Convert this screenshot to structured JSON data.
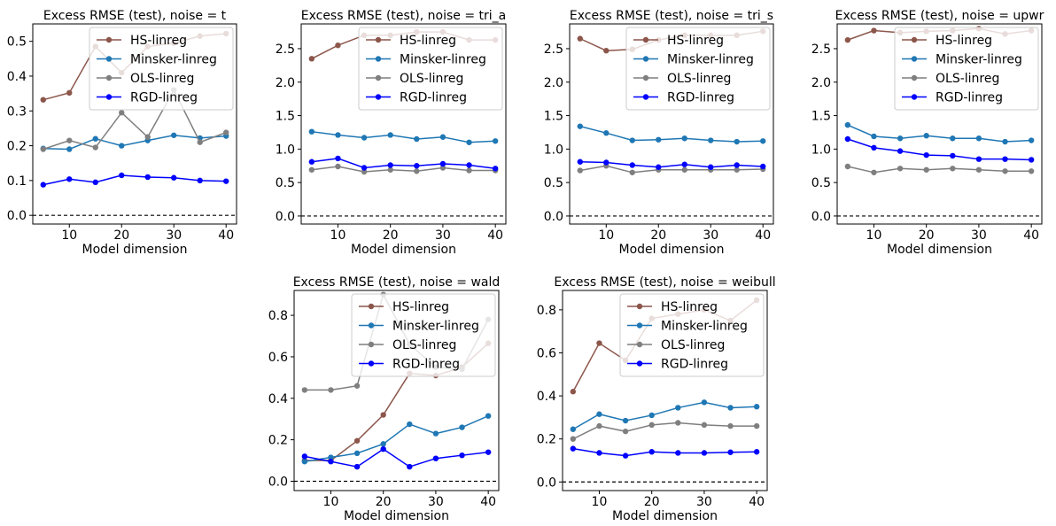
{
  "colors": {
    "HS-linreg": "#8c564b",
    "Minsker-linreg": "#1f77b4",
    "OLS-linreg": "#7f7f7f",
    "RGD-linreg": "#0000ff"
  },
  "chart_data": [
    {
      "type": "line",
      "title": "Excess RMSE (test), noise = t",
      "xlabel": "Model dimension",
      "ylabel": "",
      "x": [
        5,
        10,
        15,
        20,
        25,
        30,
        35,
        40
      ],
      "xlim": [
        3,
        42
      ],
      "ylim": [
        -0.025,
        0.55
      ],
      "xticks": [
        10,
        20,
        30,
        40
      ],
      "yticks": [
        0.0,
        0.1,
        0.2,
        0.3,
        0.4,
        0.5
      ],
      "ytick_labels": [
        "0.0",
        "0.1",
        "0.2",
        "0.3",
        "0.4",
        "0.5"
      ],
      "baseline": 0,
      "legend": "top-right",
      "series": [
        {
          "name": "HS-linreg",
          "values": [
            0.332,
            0.352,
            0.485,
            0.41,
            0.485,
            0.495,
            0.515,
            0.522
          ]
        },
        {
          "name": "Minsker-linreg",
          "values": [
            0.192,
            0.19,
            0.22,
            0.2,
            0.215,
            0.23,
            0.222,
            0.228
          ]
        },
        {
          "name": "OLS-linreg",
          "values": [
            0.19,
            0.215,
            0.195,
            0.295,
            0.225,
            0.36,
            0.21,
            0.238
          ]
        },
        {
          "name": "RGD-linreg",
          "values": [
            0.088,
            0.104,
            0.095,
            0.115,
            0.11,
            0.108,
            0.1,
            0.098
          ]
        }
      ]
    },
    {
      "type": "line",
      "title": "Excess RMSE (test), noise = tri_a",
      "xlabel": "Model dimension",
      "ylabel": "",
      "x": [
        5,
        10,
        15,
        20,
        25,
        30,
        35,
        40
      ],
      "xlim": [
        3,
        42
      ],
      "ylim": [
        -0.12,
        2.87
      ],
      "xticks": [
        10,
        20,
        30,
        40
      ],
      "yticks": [
        0.0,
        0.5,
        1.0,
        1.5,
        2.0,
        2.5
      ],
      "ytick_labels": [
        "0.0",
        "0.5",
        "1.0",
        "1.5",
        "2.0",
        "2.5"
      ],
      "baseline": 0,
      "legend": "top-right",
      "series": [
        {
          "name": "HS-linreg",
          "values": [
            2.35,
            2.55,
            2.7,
            2.7,
            2.75,
            2.75,
            2.63,
            2.63
          ]
        },
        {
          "name": "Minsker-linreg",
          "values": [
            1.26,
            1.21,
            1.17,
            1.21,
            1.15,
            1.18,
            1.1,
            1.12
          ]
        },
        {
          "name": "OLS-linreg",
          "values": [
            0.69,
            0.74,
            0.66,
            0.69,
            0.67,
            0.72,
            0.68,
            0.68
          ]
        },
        {
          "name": "RGD-linreg",
          "values": [
            0.81,
            0.86,
            0.72,
            0.76,
            0.75,
            0.78,
            0.76,
            0.71
          ]
        }
      ]
    },
    {
      "type": "line",
      "title": "Excess RMSE (test), noise = tri_s",
      "xlabel": "Model dimension",
      "ylabel": "",
      "x": [
        5,
        10,
        15,
        20,
        25,
        30,
        35,
        40
      ],
      "xlim": [
        3,
        42
      ],
      "ylim": [
        -0.12,
        2.87
      ],
      "xticks": [
        10,
        20,
        30,
        40
      ],
      "yticks": [
        0.0,
        0.5,
        1.0,
        1.5,
        2.0,
        2.5
      ],
      "ytick_labels": [
        "0.0",
        "0.5",
        "1.0",
        "1.5",
        "2.0",
        "2.5"
      ],
      "baseline": 0,
      "legend": "top-right",
      "series": [
        {
          "name": "HS-linreg",
          "values": [
            2.65,
            2.47,
            2.49,
            2.63,
            2.7,
            2.7,
            2.7,
            2.76
          ]
        },
        {
          "name": "Minsker-linreg",
          "values": [
            1.34,
            1.24,
            1.13,
            1.14,
            1.16,
            1.13,
            1.11,
            1.12
          ]
        },
        {
          "name": "OLS-linreg",
          "values": [
            0.68,
            0.75,
            0.65,
            0.69,
            0.69,
            0.69,
            0.69,
            0.7
          ]
        },
        {
          "name": "RGD-linreg",
          "values": [
            0.81,
            0.8,
            0.76,
            0.73,
            0.77,
            0.73,
            0.76,
            0.74
          ]
        }
      ]
    },
    {
      "type": "line",
      "title": "Excess RMSE (test), noise = upwr",
      "xlabel": "Model dimension",
      "ylabel": "",
      "x": [
        5,
        10,
        15,
        20,
        25,
        30,
        35,
        40
      ],
      "xlim": [
        3,
        42
      ],
      "ylim": [
        -0.12,
        2.87
      ],
      "xticks": [
        10,
        20,
        30,
        40
      ],
      "yticks": [
        0.0,
        0.5,
        1.0,
        1.5,
        2.0,
        2.5
      ],
      "ytick_labels": [
        "0.0",
        "0.5",
        "1.0",
        "1.5",
        "2.0",
        "2.5"
      ],
      "baseline": 0,
      "legend": "top-right",
      "series": [
        {
          "name": "HS-linreg",
          "values": [
            2.63,
            2.77,
            2.74,
            2.76,
            2.77,
            2.8,
            2.72,
            2.77
          ]
        },
        {
          "name": "Minsker-linreg",
          "values": [
            1.36,
            1.19,
            1.16,
            1.2,
            1.16,
            1.16,
            1.11,
            1.13
          ]
        },
        {
          "name": "OLS-linreg",
          "values": [
            0.74,
            0.65,
            0.71,
            0.69,
            0.71,
            0.69,
            0.67,
            0.67
          ]
        },
        {
          "name": "RGD-linreg",
          "values": [
            1.15,
            1.02,
            0.97,
            0.91,
            0.9,
            0.85,
            0.85,
            0.84
          ]
        }
      ]
    },
    {
      "type": "line",
      "title": "Excess RMSE (test), noise = wald",
      "xlabel": "Model dimension",
      "ylabel": "",
      "x": [
        5,
        10,
        15,
        20,
        25,
        30,
        35,
        40
      ],
      "xlim": [
        3,
        42
      ],
      "ylim": [
        -0.045,
        0.92
      ],
      "xticks": [
        10,
        20,
        30,
        40
      ],
      "yticks": [
        0.0,
        0.2,
        0.4,
        0.6,
        0.8
      ],
      "ytick_labels": [
        "0.0",
        "0.2",
        "0.4",
        "0.6",
        "0.8"
      ],
      "baseline": 0,
      "legend": "top-right",
      "series": [
        {
          "name": "HS-linreg",
          "values": [
            0.1,
            0.1,
            0.195,
            0.32,
            0.52,
            0.51,
            0.55,
            0.665
          ]
        },
        {
          "name": "Minsker-linreg",
          "values": [
            0.095,
            0.115,
            0.135,
            0.18,
            0.275,
            0.23,
            0.26,
            0.315
          ]
        },
        {
          "name": "OLS-linreg",
          "values": [
            0.44,
            0.44,
            0.46,
            0.9,
            0.66,
            0.55,
            0.54,
            0.78
          ]
        },
        {
          "name": "RGD-linreg",
          "values": [
            0.12,
            0.095,
            0.07,
            0.155,
            0.07,
            0.11,
            0.125,
            0.14
          ]
        }
      ]
    },
    {
      "type": "line",
      "title": "Excess RMSE (test), noise = weibull",
      "xlabel": "Model dimension",
      "ylabel": "",
      "x": [
        5,
        10,
        15,
        20,
        25,
        30,
        35,
        40
      ],
      "xlim": [
        3,
        42
      ],
      "ylim": [
        -0.04,
        0.89
      ],
      "xticks": [
        10,
        20,
        30,
        40
      ],
      "yticks": [
        0.0,
        0.2,
        0.4,
        0.6,
        0.8
      ],
      "ytick_labels": [
        "0.0",
        "0.2",
        "0.4",
        "0.6",
        "0.8"
      ],
      "baseline": 0,
      "legend": "top-right",
      "series": [
        {
          "name": "HS-linreg",
          "values": [
            0.42,
            0.645,
            0.565,
            0.76,
            0.78,
            0.8,
            0.75,
            0.845
          ]
        },
        {
          "name": "Minsker-linreg",
          "values": [
            0.245,
            0.315,
            0.285,
            0.31,
            0.345,
            0.37,
            0.345,
            0.35
          ]
        },
        {
          "name": "OLS-linreg",
          "values": [
            0.2,
            0.26,
            0.235,
            0.265,
            0.275,
            0.265,
            0.26,
            0.26
          ]
        },
        {
          "name": "RGD-linreg",
          "values": [
            0.155,
            0.135,
            0.122,
            0.14,
            0.135,
            0.135,
            0.138,
            0.14
          ]
        }
      ]
    }
  ]
}
